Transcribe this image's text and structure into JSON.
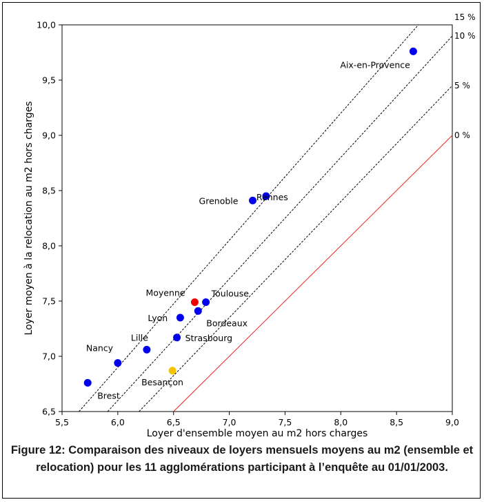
{
  "chart_data": {
    "type": "scatter",
    "title": "",
    "xlabel": "Loyer d'ensemble moyen au m2 hors charges",
    "ylabel": "Loyer moyen à la relocation au m2 hors charges",
    "xlim": [
      5.5,
      9.0
    ],
    "ylim": [
      6.5,
      10.0
    ],
    "x_ticks": [
      "5,5",
      "6,0",
      "6,5",
      "7,0",
      "7,5",
      "8,0",
      "8,5",
      "9,0"
    ],
    "y_ticks": [
      "6,5",
      "7,0",
      "7,5",
      "8,0",
      "8,5",
      "9,0",
      "9,5",
      "10,0"
    ],
    "grid": false,
    "colors": {
      "city": "#0000ee",
      "average": "#ee0000",
      "highlight": "#f5c400",
      "reference_0": "#ee2222",
      "reference_dashed": "#000000"
    },
    "points": [
      {
        "label": "Aix-en-Provence",
        "x": 8.65,
        "y": 9.76,
        "color": "#0000ee",
        "label_dx": -106,
        "label_dy": 24
      },
      {
        "label": "Rennes",
        "x": 7.33,
        "y": 8.45,
        "color": "#0000ee",
        "label_dx": -14,
        "label_dy": 6
      },
      {
        "label": "Grenoble",
        "x": 7.21,
        "y": 8.41,
        "color": "#0000ee",
        "label_dx": -78,
        "label_dy": 5
      },
      {
        "label": "Toulouse",
        "x": 6.79,
        "y": 7.49,
        "color": "#0000ee",
        "label_dx": 8,
        "label_dy": -8
      },
      {
        "label": "Moyenne",
        "x": 6.69,
        "y": 7.49,
        "color": "#ee0000",
        "label_dx": -71,
        "label_dy": -9
      },
      {
        "label": "Bordeaux",
        "x": 6.72,
        "y": 7.41,
        "color": "#0000ee",
        "label_dx": 12,
        "label_dy": 22
      },
      {
        "label": "Lyon",
        "x": 6.56,
        "y": 7.35,
        "color": "#0000ee",
        "label_dx": -47,
        "label_dy": 5
      },
      {
        "label": "Strasbourg",
        "x": 6.53,
        "y": 7.17,
        "color": "#0000ee",
        "label_dx": 12,
        "label_dy": 5
      },
      {
        "label": "Lille",
        "x": 6.26,
        "y": 7.06,
        "color": "#0000ee",
        "label_dx": -23,
        "label_dy": -13
      },
      {
        "label": "Nancy",
        "x": 6.0,
        "y": 6.94,
        "color": "#0000ee",
        "label_dx": -46,
        "label_dy": -17
      },
      {
        "label": "Besançon",
        "x": 6.49,
        "y": 6.87,
        "color": "#f5c400",
        "label_dx": -45,
        "label_dy": 21
      },
      {
        "label": "Brest",
        "x": 5.73,
        "y": 6.76,
        "color": "#0000ee",
        "label_dx": 14,
        "label_dy": 23
      }
    ],
    "reference_lines": [
      {
        "label": "15 %",
        "pct": 15,
        "style": "dashed"
      },
      {
        "label": "10 %",
        "pct": 10,
        "style": "dashed"
      },
      {
        "label": "5 %",
        "pct": 5,
        "style": "dashed"
      },
      {
        "label": "0 %",
        "pct": 0,
        "style": "solid"
      }
    ]
  },
  "caption": {
    "line1": "Figure 12: Comparaison des niveaux de loyers mensuels moyens au m2 (ensemble et",
    "line2": "relocation) pour les 11 agglomérations participant à l’enquête au 01/01/2003."
  }
}
